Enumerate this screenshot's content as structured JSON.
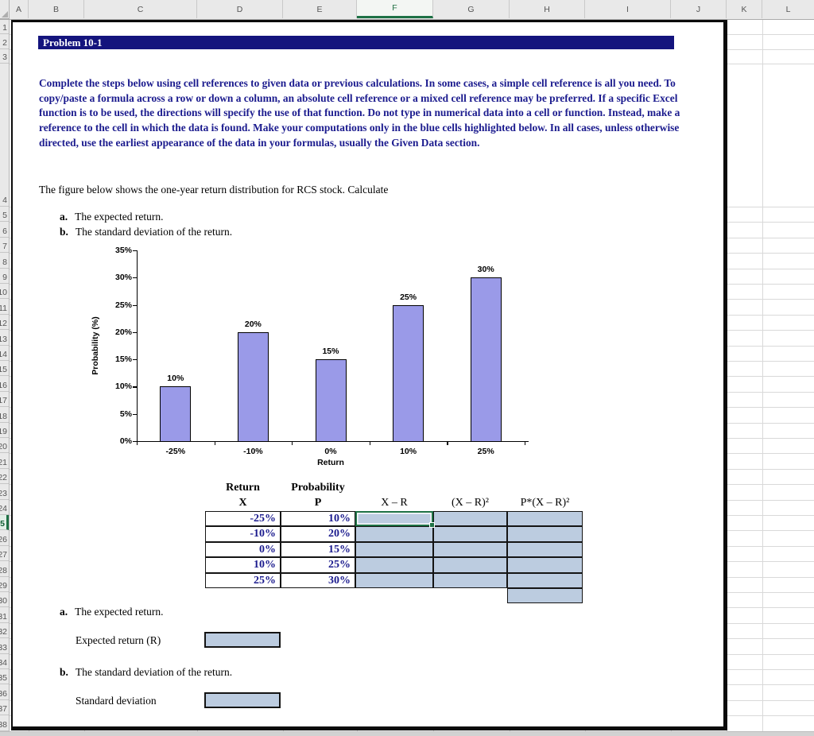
{
  "spreadsheet": {
    "column_headers": [
      "A",
      "B",
      "C",
      "D",
      "E",
      "F",
      "G",
      "H",
      "I",
      "J",
      "K",
      "L"
    ],
    "selected_column": "F",
    "selected_row": 25,
    "first_row": 1,
    "last_row": 38
  },
  "document": {
    "title": "Problem 10-1",
    "instructions": "Complete the steps below using cell references to given data or previous calculations. In some cases, a simple cell reference is all you need. To copy/paste a formula across a row or down a column, an absolute cell reference or a mixed cell reference may be preferred. If a specific Excel function is to be used, the directions will specify the use of that function. Do not type in numerical data into a cell or function. Instead, make a reference to the cell in which the data is found. Make your computations only in the blue cells highlighted below. In all cases, unless otherwise directed, use the earliest appearance of the data in your formulas, usually the Given Data section.",
    "intro": "The figure below shows the one-year return distribution for RCS stock. Calculate",
    "list": [
      {
        "marker": "a.",
        "text": "The expected return."
      },
      {
        "marker": "b.",
        "text": "The standard deviation of the return."
      }
    ]
  },
  "chart_data": {
    "type": "bar",
    "title": "",
    "categories": [
      "-25%",
      "-10%",
      "0%",
      "10%",
      "25%"
    ],
    "values": [
      10,
      20,
      15,
      25,
      30
    ],
    "data_labels": [
      "10%",
      "20%",
      "15%",
      "25%",
      "30%"
    ],
    "xlabel": "Return",
    "ylabel": "Probability (%)",
    "ylim": [
      0,
      35
    ],
    "ytick_step": 5,
    "ytick_labels": [
      "0%",
      "5%",
      "10%",
      "15%",
      "20%",
      "25%",
      "30%",
      "35%"
    ],
    "bar_color": "#9a9ae8",
    "grid": false,
    "legend": false
  },
  "table": {
    "headers": {
      "return": "Return",
      "x": "X",
      "probability": "Probability",
      "p": "P",
      "x_minus_r": "X – R",
      "x_minus_r_sq": "(X – R)²",
      "p_x_minus_r_sq": "P*(X – R)²"
    },
    "rows": [
      {
        "x": "-25%",
        "p": "10%"
      },
      {
        "x": "-10%",
        "p": "20%"
      },
      {
        "x": "0%",
        "p": "15%"
      },
      {
        "x": "10%",
        "p": "25%"
      },
      {
        "x": "25%",
        "p": "30%"
      }
    ]
  },
  "answers": {
    "a": {
      "marker": "a.",
      "heading": "The expected return.",
      "label": "Expected return (R)",
      "value": ""
    },
    "b": {
      "marker": "b.",
      "heading": "The standard deviation of the return.",
      "label": "Standard deviation",
      "value": ""
    }
  },
  "colors": {
    "title_bar_navy": "#14147d",
    "text_navy": "#1b1b8e",
    "input_cell_blue": "#bccce0",
    "bar_fill": "#9a9ae8",
    "selection_green": "#1e7145"
  }
}
